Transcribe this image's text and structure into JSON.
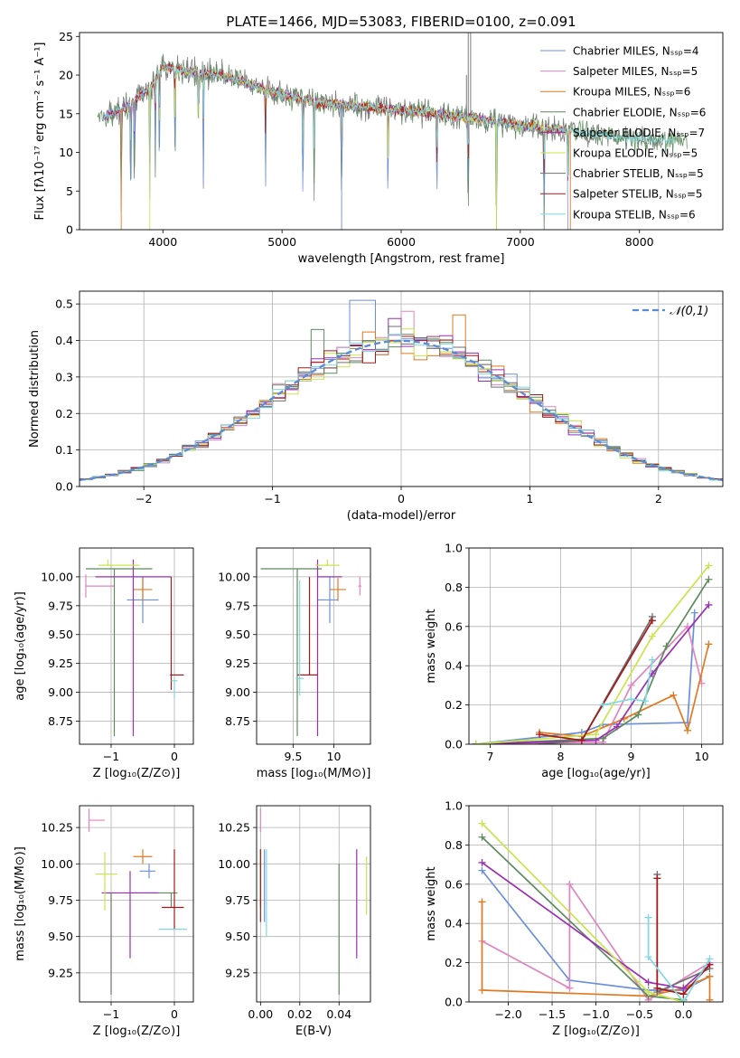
{
  "colors": [
    "#6a8fdc",
    "#e085c0",
    "#e07a22",
    "#5e8b5e",
    "#9b2fb4",
    "#c9e44c",
    "#6f6f6f",
    "#a51b1b",
    "#7fd9de"
  ],
  "chart_data": [
    {
      "id": "spectrum",
      "type": "line",
      "title": "PLATE=1466, MJD=53083, FIBERID=0100, z=0.091",
      "xlabel": "wavelength [Angstrom, rest frame]",
      "ylabel": "Flux [fλ10⁻¹⁷ erg cm⁻² s⁻¹ A⁻¹]",
      "xlim": [
        3300,
        8700
      ],
      "ylim": [
        0,
        25.5
      ],
      "xticks": [
        4000,
        5000,
        6000,
        7000,
        8000
      ],
      "yticks": [
        0,
        5,
        10,
        15,
        20,
        25
      ],
      "grid": false,
      "legend_position": "upper-right",
      "legend": [
        {
          "label": "Chabrier MILES, Nₛₛₚ=4"
        },
        {
          "label": "Salpeter MILES, Nₛₛₚ=5"
        },
        {
          "label": "Kroupa MILES, Nₛₛₚ=6"
        },
        {
          "label": "Chabrier ELODIE, Nₛₛₚ=6"
        },
        {
          "label": "Salpeter ELODIE, Nₛₛₚ=7"
        },
        {
          "label": "Kroupa ELODIE, Nₛₛₚ=5"
        },
        {
          "label": "Chabrier STELIB, Nₛₛₚ=5"
        },
        {
          "label": "Salpeter STELIB, Nₛₛₚ=5"
        },
        {
          "label": "Kroupa STELIB, Nₛₛₚ=6"
        }
      ],
      "continuum": [
        [
          3500,
          14.5
        ],
        [
          3700,
          16
        ],
        [
          3900,
          18.5
        ],
        [
          4000,
          21
        ],
        [
          4200,
          20.5
        ],
        [
          4500,
          20
        ],
        [
          4800,
          18.5
        ],
        [
          5000,
          17.5
        ],
        [
          5300,
          16.5
        ],
        [
          5600,
          16
        ],
        [
          6000,
          15.5
        ],
        [
          6300,
          15
        ],
        [
          6600,
          14.5
        ],
        [
          7000,
          13.5
        ],
        [
          7400,
          12.8
        ],
        [
          7800,
          12
        ],
        [
          8200,
          11.5
        ]
      ],
      "absorption_lines": [
        3650,
        3730,
        3760,
        3890,
        3935,
        3970,
        4102,
        4300,
        4340,
        4861,
        5175,
        5270,
        5500,
        5890,
        6300,
        6563,
        6800,
        7200,
        7400
      ]
    },
    {
      "id": "residuals",
      "type": "histogram",
      "xlabel": "(data-model)/error",
      "ylabel": "Normed distribution",
      "xlim": [
        -2.5,
        2.5
      ],
      "ylim": [
        0,
        0.535
      ],
      "xticks": [
        -2,
        -1,
        0,
        1,
        2
      ],
      "yticks": [
        0.0,
        0.1,
        0.2,
        0.3,
        0.4,
        0.5
      ],
      "grid": true,
      "legend": [
        {
          "label": "𝒩(0,1)"
        }
      ],
      "legend_position": "upper-right",
      "bin_width": 0.1,
      "distribution": "normal(0,1)",
      "series_peak_bins": [
        [
          -0.3,
          0.51
        ],
        [
          0.05,
          0.48
        ],
        [
          0.45,
          0.47
        ],
        [
          -0.65,
          0.43
        ],
        [
          -0.05,
          0.46
        ]
      ]
    },
    {
      "id": "age-vs-Z",
      "type": "errorbar",
      "xlabel": "Z [log₁₀(Z/Z⊙)]",
      "ylabel": "age  [log₁₀(age/yr)]",
      "xlim": [
        -1.5,
        0.3
      ],
      "ylim": [
        8.55,
        10.25
      ],
      "xticks": [
        -1,
        0
      ],
      "yticks": [
        8.75,
        9.0,
        9.25,
        9.5,
        9.75,
        10.0
      ],
      "grid": true,
      "points": [
        {
          "x": -0.5,
          "y": 9.8,
          "xerr": [
            0.25,
            0.25
          ],
          "yerr": [
            0.2,
            0.2
          ]
        },
        {
          "x": -1.4,
          "y": 9.92,
          "xerr": [
            0.0,
            0.45
          ],
          "yerr": [
            0.1,
            0.1
          ]
        },
        {
          "x": -0.5,
          "y": 9.89,
          "xerr": [
            0.15,
            0.15
          ],
          "yerr": [
            0.1,
            0.1
          ]
        },
        {
          "x": -0.95,
          "y": 10.07,
          "xerr": [
            0.45,
            0.6
          ],
          "yerr": [
            1.45,
            0.0
          ]
        },
        {
          "x": -0.65,
          "y": 10.0,
          "xerr": [
            0.6,
            0.6
          ],
          "yerr": [
            1.38,
            0.15
          ]
        },
        {
          "x": -1.05,
          "y": 10.1,
          "xerr": [
            0.15,
            0.5
          ],
          "yerr": [
            0.0,
            0.05
          ]
        },
        {
          "x": -1.0,
          "y": 10.07,
          "xerr": [
            0.0,
            0.0
          ],
          "yerr": [
            0.0,
            0.0
          ]
        },
        {
          "x": -0.05,
          "y": 9.15,
          "xerr": [
            0.02,
            0.2
          ],
          "yerr": [
            0.13,
            0.85
          ]
        },
        {
          "x": -0.0,
          "y": 9.1,
          "xerr": [
            0.05,
            0.05
          ],
          "yerr": [
            0.15,
            0.0
          ]
        }
      ]
    },
    {
      "id": "age-vs-mass",
      "type": "errorbar",
      "xlabel": "mass [log₁₀(M/M⊙)]",
      "ylabel": "",
      "xlim": [
        9.05,
        10.45
      ],
      "ylim": [
        8.55,
        10.25
      ],
      "xticks": [
        9.5,
        10.0
      ],
      "yticks": [
        8.75,
        9.0,
        9.25,
        9.5,
        9.75,
        10.0
      ],
      "grid": true,
      "points": [
        {
          "x": 9.95,
          "y": 9.8,
          "xerr": [
            0.15,
            0.1
          ],
          "yerr": [
            0.2,
            0.2
          ]
        },
        {
          "x": 10.32,
          "y": 9.92,
          "xerr": [
            0.02,
            0.02
          ],
          "yerr": [
            0.08,
            0.08
          ]
        },
        {
          "x": 10.05,
          "y": 9.89,
          "xerr": [
            0.1,
            0.1
          ],
          "yerr": [
            0.1,
            0.1
          ]
        },
        {
          "x": 9.55,
          "y": 10.07,
          "xerr": [
            0.45,
            0.3
          ],
          "yerr": [
            1.45,
            0.0
          ]
        },
        {
          "x": 9.8,
          "y": 10.0,
          "xerr": [
            0.0,
            0.3
          ],
          "yerr": [
            1.38,
            0.15
          ]
        },
        {
          "x": 9.92,
          "y": 10.1,
          "xerr": [
            0.15,
            0.15
          ],
          "yerr": [
            0.0,
            0.05
          ]
        },
        {
          "x": 9.55,
          "y": 9.12,
          "xerr": [
            0.0,
            0.0
          ],
          "yerr": [
            0.0,
            0.0
          ]
        },
        {
          "x": 9.7,
          "y": 9.15,
          "xerr": [
            0.15,
            0.1
          ],
          "yerr": [
            0.0,
            0.85
          ]
        },
        {
          "x": 9.58,
          "y": 9.12,
          "xerr": [
            0.05,
            0.05
          ],
          "yerr": [
            0.15,
            0.85
          ]
        }
      ]
    },
    {
      "id": "mass-weight-vs-age",
      "type": "line",
      "xlabel": "age  [log₁₀(age/yr)]",
      "ylabel": "mass weight",
      "xlim": [
        6.7,
        10.3
      ],
      "ylim": [
        0,
        1.0
      ],
      "xticks": [
        7,
        8,
        9,
        10
      ],
      "yticks": [
        0.0,
        0.2,
        0.4,
        0.6,
        0.8,
        1.0
      ],
      "grid": true,
      "series": [
        {
          "points": [
            [
              6.8,
              0.0
            ],
            [
              8.3,
              0.06
            ],
            [
              8.6,
              0.1
            ],
            [
              9.8,
              0.11
            ],
            [
              9.9,
              0.67
            ]
          ]
        },
        {
          "points": [
            [
              6.8,
              0.0
            ],
            [
              8.6,
              0.01
            ],
            [
              9.0,
              0.3
            ],
            [
              9.8,
              0.6
            ],
            [
              10.0,
              0.31
            ]
          ]
        },
        {
          "points": [
            [
              7.7,
              0.06
            ],
            [
              8.3,
              0.04
            ],
            [
              8.9,
              0.13
            ],
            [
              9.6,
              0.25
            ],
            [
              9.8,
              0.07
            ],
            [
              10.1,
              0.51
            ]
          ]
        },
        {
          "points": [
            [
              6.8,
              0.0
            ],
            [
              8.6,
              0.03
            ],
            [
              9.1,
              0.15
            ],
            [
              9.5,
              0.5
            ],
            [
              10.1,
              0.84
            ]
          ]
        },
        {
          "points": [
            [
              6.8,
              0.0
            ],
            [
              8.5,
              0.02
            ],
            [
              8.8,
              0.09
            ],
            [
              9.3,
              0.36
            ],
            [
              10.1,
              0.71
            ]
          ]
        },
        {
          "points": [
            [
              6.8,
              0.0
            ],
            [
              8.5,
              0.05
            ],
            [
              9.3,
              0.55
            ],
            [
              10.1,
              0.91
            ]
          ]
        },
        {
          "points": [
            [
              7.7,
              0.0
            ],
            [
              8.3,
              0.02
            ],
            [
              9.3,
              0.65
            ]
          ]
        },
        {
          "points": [
            [
              7.7,
              0.05
            ],
            [
              8.3,
              0.02
            ],
            [
              9.3,
              0.63
            ]
          ]
        },
        {
          "points": [
            [
              8.6,
              0.2
            ],
            [
              9.0,
              0.23
            ],
            [
              9.2,
              0.22
            ],
            [
              9.3,
              0.43
            ]
          ]
        }
      ]
    },
    {
      "id": "mass-vs-Z",
      "type": "errorbar",
      "xlabel": "Z [log₁₀(Z/Z⊙)]",
      "ylabel": "mass [log₁₀(M/M⊙)]",
      "xlim": [
        -1.5,
        0.3
      ],
      "ylim": [
        9.05,
        10.4
      ],
      "xticks": [
        -1,
        0
      ],
      "yticks": [
        9.25,
        9.5,
        9.75,
        10.0,
        10.25
      ],
      "grid": true,
      "points": [
        {
          "x": -0.4,
          "y": 9.95,
          "xerr": [
            0.15,
            0.1
          ],
          "yerr": [
            0.05,
            0.05
          ]
        },
        {
          "x": -1.35,
          "y": 10.3,
          "xerr": [
            0.0,
            0.25
          ],
          "yerr": [
            0.08,
            0.08
          ]
        },
        {
          "x": -0.5,
          "y": 10.05,
          "xerr": [
            0.15,
            0.15
          ],
          "yerr": [
            0.05,
            0.05
          ]
        },
        {
          "x": -0.05,
          "y": 9.8,
          "xerr": [
            0.6,
            0.1
          ],
          "yerr": [
            0.1,
            0.0
          ]
        },
        {
          "x": -0.7,
          "y": 9.8,
          "xerr": [
            0.45,
            0.45
          ],
          "yerr": [
            0.45,
            0.15
          ]
        },
        {
          "x": -1.1,
          "y": 9.93,
          "xerr": [
            0.15,
            0.2
          ],
          "yerr": [
            0.25,
            0.15
          ]
        },
        {
          "x": -1.0,
          "y": 9.8,
          "xerr": [
            0.0,
            0.0
          ],
          "yerr": [
            0.7,
            0.0
          ]
        },
        {
          "x": 0.0,
          "y": 9.7,
          "xerr": [
            0.2,
            0.15
          ],
          "yerr": [
            0.15,
            0.4
          ]
        },
        {
          "x": 0.0,
          "y": 9.55,
          "xerr": [
            0.25,
            0.2
          ],
          "yerr": [
            0.0,
            0.0
          ]
        }
      ]
    },
    {
      "id": "mass-vs-EBV",
      "type": "errorbar",
      "xlabel": "E(B-V)",
      "ylabel": "",
      "xlim": [
        -0.002,
        0.056
      ],
      "ylim": [
        9.05,
        10.4
      ],
      "xticks": [
        0.0,
        0.02,
        0.04
      ],
      "yticks": [
        9.25,
        9.5,
        9.75,
        10.0,
        10.25
      ],
      "grid": true,
      "points": [
        {
          "x": 0.002,
          "y": 9.8,
          "xerr": [
            0.0,
            0.0
          ],
          "yerr": [
            0.2,
            0.3
          ]
        },
        {
          "x": 0.0,
          "y": 10.3,
          "xerr": [
            0.0,
            0.0
          ],
          "yerr": [
            0.08,
            0.08
          ]
        },
        {
          "x": 0.0,
          "y": 9.85,
          "xerr": [
            0.0,
            0.0
          ],
          "yerr": [
            0.15,
            0.25
          ]
        },
        {
          "x": 0.04,
          "y": 9.55,
          "xerr": [
            0.0,
            0.0
          ],
          "yerr": [
            0.45,
            0.45
          ]
        },
        {
          "x": 0.049,
          "y": 9.65,
          "xerr": [
            0.0,
            0.0
          ],
          "yerr": [
            0.3,
            0.45
          ]
        },
        {
          "x": 0.054,
          "y": 9.85,
          "xerr": [
            0.0,
            0.0
          ],
          "yerr": [
            0.2,
            0.2
          ]
        },
        {
          "x": 0.04,
          "y": 9.5,
          "xerr": [
            0.0,
            0.0
          ],
          "yerr": [
            0.0,
            0.0
          ]
        },
        {
          "x": 0.0,
          "y": 9.8,
          "xerr": [
            0.0,
            0.0
          ],
          "yerr": [
            0.2,
            0.3
          ]
        },
        {
          "x": 0.003,
          "y": 9.75,
          "xerr": [
            0.0,
            0.0
          ],
          "yerr": [
            0.25,
            0.35
          ]
        }
      ]
    },
    {
      "id": "mass-weight-vs-Z",
      "type": "line",
      "xlabel": "Z [log₁₀(Z/Z⊙)]",
      "ylabel": "mass weight",
      "xlim": [
        -2.45,
        0.45
      ],
      "ylim": [
        0,
        1.0
      ],
      "xticks": [
        -2.0,
        -1.5,
        -1.0,
        -0.5,
        0.0
      ],
      "yticks": [
        0.0,
        0.2,
        0.4,
        0.6,
        0.8,
        1.0
      ],
      "grid": true,
      "series": [
        {
          "points": [
            [
              -2.3,
              0.67
            ],
            [
              -1.3,
              0.11
            ],
            [
              -0.4,
              0.06
            ],
            [
              0.0,
              0.06
            ],
            [
              0.3,
              0.13
            ]
          ]
        },
        {
          "points": [
            [
              -2.3,
              0.31
            ],
            [
              -1.3,
              0.07
            ],
            [
              -1.3,
              0.6
            ],
            [
              -0.4,
              0.01
            ],
            [
              0.3,
              0.2
            ]
          ]
        },
        {
          "points": [
            [
              -2.3,
              0.51
            ],
            [
              -2.3,
              0.06
            ],
            [
              -0.4,
              0.03
            ],
            [
              0.0,
              0.07
            ],
            [
              0.3,
              0.13
            ],
            [
              0.3,
              0.01
            ]
          ]
        },
        {
          "points": [
            [
              -2.3,
              0.84
            ],
            [
              -0.4,
              0.03
            ],
            [
              0.0,
              0.01
            ]
          ]
        },
        {
          "points": [
            [
              -2.3,
              0.71
            ],
            [
              -0.4,
              0.1
            ],
            [
              0.0,
              0.07
            ],
            [
              0.3,
              0.19
            ]
          ]
        },
        {
          "points": [
            [
              -2.3,
              0.91
            ],
            [
              -0.4,
              0.05
            ],
            [
              0.0,
              0.0
            ]
          ]
        },
        {
          "points": [
            [
              -0.3,
              0.65
            ],
            [
              -0.3,
              0.05
            ],
            [
              0.3,
              0.17
            ]
          ]
        },
        {
          "points": [
            [
              -0.3,
              0.63
            ],
            [
              -0.3,
              0.07
            ],
            [
              0.0,
              0.04
            ],
            [
              0.3,
              0.19
            ]
          ]
        },
        {
          "points": [
            [
              -0.4,
              0.43
            ],
            [
              -0.4,
              0.23
            ],
            [
              0.0,
              0.0
            ],
            [
              0.3,
              0.22
            ]
          ]
        }
      ]
    }
  ]
}
